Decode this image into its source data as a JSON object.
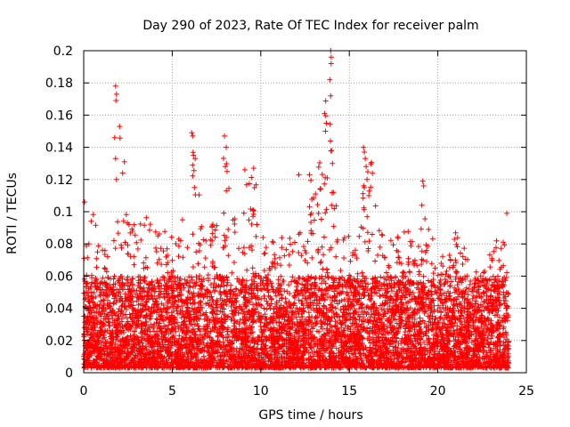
{
  "chart_data": {
    "type": "scatter",
    "title": "Day 290 of 2023, Rate Of TEC Index for receiver palm",
    "xlabel": "GPS time / hours",
    "ylabel": "ROTI / TECUs",
    "xlim": [
      0,
      25
    ],
    "ylim": [
      0,
      0.2
    ],
    "xticks": [
      0,
      5,
      10,
      15,
      20,
      25
    ],
    "yticks": [
      0,
      0.02,
      0.04,
      0.06,
      0.08,
      0.1,
      0.12,
      0.14,
      0.16,
      0.18,
      0.2
    ],
    "xtick_labels": [
      "0",
      "5",
      "10",
      "15",
      "20",
      "25"
    ],
    "ytick_labels": [
      "0",
      "0.02",
      "0.04",
      "0.06",
      "0.08",
      "0.1",
      "0.12",
      "0.14",
      "0.16",
      "0.18",
      "0.2"
    ],
    "grid": true,
    "marker": "plus",
    "series_color": "#ff0000",
    "x_range": [
      0,
      24
    ],
    "dense_band": [
      0.003,
      0.06
    ],
    "envelope": [
      [
        0,
        0.07
      ],
      [
        0.5,
        0.1
      ],
      [
        1,
        0.08
      ],
      [
        1.5,
        0.07
      ],
      [
        1.8,
        0.1
      ],
      [
        2.0,
        0.18
      ],
      [
        2.2,
        0.1
      ],
      [
        2.5,
        0.1
      ],
      [
        3.0,
        0.09
      ],
      [
        3.5,
        0.1
      ],
      [
        4.0,
        0.095
      ],
      [
        4.5,
        0.09
      ],
      [
        5.0,
        0.085
      ],
      [
        5.5,
        0.09
      ],
      [
        6.0,
        0.13
      ],
      [
        6.2,
        0.15
      ],
      [
        6.5,
        0.12
      ],
      [
        7.0,
        0.1
      ],
      [
        7.5,
        0.09
      ],
      [
        8.0,
        0.147
      ],
      [
        8.3,
        0.1
      ],
      [
        8.8,
        0.1
      ],
      [
        9.2,
        0.126
      ],
      [
        9.7,
        0.126
      ],
      [
        10.0,
        0.09
      ],
      [
        10.5,
        0.085
      ],
      [
        11.0,
        0.085
      ],
      [
        11.5,
        0.085
      ],
      [
        12.0,
        0.085
      ],
      [
        12.5,
        0.09
      ],
      [
        12.8,
        0.123
      ],
      [
        13.0,
        0.11
      ],
      [
        13.6,
        0.16
      ],
      [
        13.8,
        0.2
      ],
      [
        14.0,
        0.2
      ],
      [
        14.2,
        0.11
      ],
      [
        14.5,
        0.09
      ],
      [
        15.0,
        0.085
      ],
      [
        15.5,
        0.08
      ],
      [
        16.0,
        0.14
      ],
      [
        16.3,
        0.13
      ],
      [
        16.6,
        0.1
      ],
      [
        17.0,
        0.08
      ],
      [
        17.5,
        0.085
      ],
      [
        18.0,
        0.09
      ],
      [
        18.5,
        0.09
      ],
      [
        19.0,
        0.09
      ],
      [
        19.2,
        0.12
      ],
      [
        19.5,
        0.1
      ],
      [
        20.0,
        0.08
      ],
      [
        20.5,
        0.07
      ],
      [
        21.0,
        0.088
      ],
      [
        21.5,
        0.085
      ],
      [
        22.0,
        0.07
      ],
      [
        22.5,
        0.065
      ],
      [
        23.0,
        0.08
      ],
      [
        23.5,
        0.085
      ],
      [
        23.9,
        0.099
      ],
      [
        24.0,
        0.06
      ]
    ],
    "high_points": [
      {
        "x": 1.8,
        "y": 0.178
      },
      {
        "x": 1.85,
        "y": 0.173
      },
      {
        "x": 1.82,
        "y": 0.169
      },
      {
        "x": 1.75,
        "y": 0.146
      },
      {
        "x": 1.8,
        "y": 0.133
      },
      {
        "x": 1.85,
        "y": 0.12
      },
      {
        "x": 2.3,
        "y": 0.131
      },
      {
        "x": 2.2,
        "y": 0.124
      },
      {
        "x": 6.1,
        "y": 0.149
      },
      {
        "x": 6.15,
        "y": 0.147
      },
      {
        "x": 6.2,
        "y": 0.135
      },
      {
        "x": 6.3,
        "y": 0.133
      },
      {
        "x": 7.95,
        "y": 0.147
      },
      {
        "x": 8.05,
        "y": 0.14
      },
      {
        "x": 8.0,
        "y": 0.128
      },
      {
        "x": 8.1,
        "y": 0.125
      },
      {
        "x": 9.1,
        "y": 0.126
      },
      {
        "x": 9.6,
        "y": 0.127
      },
      {
        "x": 12.15,
        "y": 0.123
      },
      {
        "x": 12.75,
        "y": 0.123
      },
      {
        "x": 13.6,
        "y": 0.161
      },
      {
        "x": 13.7,
        "y": 0.155
      },
      {
        "x": 13.65,
        "y": 0.15
      },
      {
        "x": 13.75,
        "y": 0.121
      },
      {
        "x": 13.95,
        "y": 0.2
      },
      {
        "x": 13.98,
        "y": 0.196
      },
      {
        "x": 13.9,
        "y": 0.182
      },
      {
        "x": 13.95,
        "y": 0.172
      },
      {
        "x": 14.0,
        "y": 0.138
      },
      {
        "x": 14.05,
        "y": 0.13
      },
      {
        "x": 14.1,
        "y": 0.112
      },
      {
        "x": 14.0,
        "y": 0.104
      },
      {
        "x": 14.15,
        "y": 0.102
      },
      {
        "x": 15.8,
        "y": 0.14
      },
      {
        "x": 15.85,
        "y": 0.137
      },
      {
        "x": 15.9,
        "y": 0.133
      },
      {
        "x": 15.95,
        "y": 0.128
      },
      {
        "x": 16.0,
        "y": 0.12
      },
      {
        "x": 15.85,
        "y": 0.115
      },
      {
        "x": 16.1,
        "y": 0.11
      },
      {
        "x": 19.15,
        "y": 0.119
      },
      {
        "x": 19.2,
        "y": 0.116
      },
      {
        "x": 19.1,
        "y": 0.104
      },
      {
        "x": 0.05,
        "y": 0.106
      },
      {
        "x": 23.9,
        "y": 0.099
      }
    ]
  }
}
